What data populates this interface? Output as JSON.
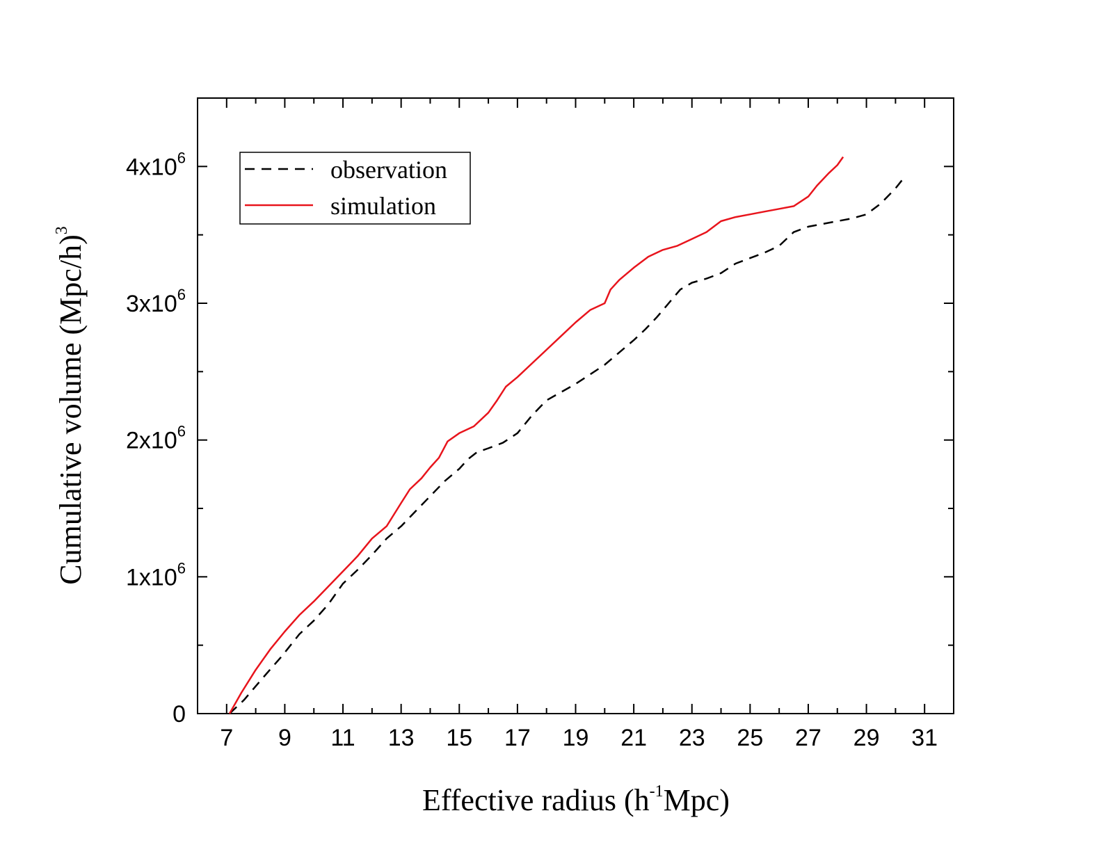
{
  "chart_data": {
    "type": "line",
    "xlabel": {
      "main": "Effective radius (h",
      "sup": "-1",
      "tail": "Mpc)"
    },
    "ylabel": {
      "main": "Cumulative volume (Mpc/h)",
      "sup": "3"
    },
    "xlim": [
      6,
      32
    ],
    "ylim": [
      0,
      4500000
    ],
    "x_ticks": [
      7,
      9,
      11,
      13,
      15,
      17,
      19,
      21,
      23,
      25,
      27,
      29,
      31
    ],
    "x_tick_labels": [
      "7",
      "9",
      "11",
      "13",
      "15",
      "17",
      "19",
      "21",
      "23",
      "25",
      "27",
      "29",
      "31"
    ],
    "y_ticks": [
      0,
      1000000,
      2000000,
      3000000,
      4000000
    ],
    "y_tick_labels": [
      {
        "base": "0",
        "exp": ""
      },
      {
        "base": "1x10",
        "exp": "6"
      },
      {
        "base": "2x10",
        "exp": "6"
      },
      {
        "base": "3x10",
        "exp": "6"
      },
      {
        "base": "4x10",
        "exp": "6"
      }
    ],
    "legend": {
      "position": "top-left"
    },
    "series": [
      {
        "name": "observation",
        "color": "#000000",
        "style": "dashed",
        "x": [
          7.1,
          7.6,
          8.2,
          8.9,
          9.5,
          10.0,
          10.5,
          11.0,
          11.5,
          12.0,
          12.5,
          13.0,
          13.5,
          14.0,
          14.5,
          15.0,
          15.3,
          15.6,
          16.0,
          16.5,
          17.0,
          17.5,
          18.0,
          18.5,
          19.0,
          19.5,
          20.0,
          20.5,
          21.0,
          21.4,
          21.8,
          22.2,
          22.6,
          23.0,
          23.5,
          24.0,
          24.5,
          25.0,
          25.5,
          26.0,
          26.5,
          27.0,
          27.5,
          28.0,
          28.5,
          29.0,
          29.5,
          30.0,
          30.3
        ],
        "y": [
          0,
          100000,
          250000,
          420000,
          580000,
          680000,
          800000,
          950000,
          1050000,
          1160000,
          1280000,
          1370000,
          1480000,
          1590000,
          1700000,
          1790000,
          1860000,
          1910000,
          1940000,
          1980000,
          2050000,
          2180000,
          2290000,
          2350000,
          2410000,
          2480000,
          2550000,
          2640000,
          2730000,
          2810000,
          2900000,
          3000000,
          3100000,
          3150000,
          3180000,
          3220000,
          3290000,
          3330000,
          3370000,
          3420000,
          3520000,
          3560000,
          3580000,
          3600000,
          3620000,
          3650000,
          3730000,
          3840000,
          3920000
        ]
      },
      {
        "name": "simulation",
        "color": "#e8141c",
        "style": "solid",
        "x": [
          7.1,
          7.5,
          8.0,
          8.5,
          9.0,
          9.5,
          10.0,
          10.5,
          11.0,
          11.5,
          12.0,
          12.5,
          13.0,
          13.3,
          13.7,
          14.0,
          14.3,
          14.6,
          15.0,
          15.5,
          16.0,
          16.3,
          16.6,
          17.0,
          17.5,
          18.0,
          18.5,
          19.0,
          19.5,
          20.0,
          20.2,
          20.5,
          21.0,
          21.5,
          22.0,
          22.5,
          23.0,
          23.5,
          24.0,
          24.5,
          25.0,
          25.5,
          26.0,
          26.5,
          27.0,
          27.3,
          27.7,
          28.0,
          28.2
        ],
        "y": [
          0,
          150000,
          320000,
          470000,
          600000,
          720000,
          820000,
          930000,
          1040000,
          1150000,
          1280000,
          1370000,
          1540000,
          1640000,
          1720000,
          1800000,
          1870000,
          1990000,
          2050000,
          2100000,
          2200000,
          2290000,
          2390000,
          2460000,
          2560000,
          2660000,
          2760000,
          2860000,
          2950000,
          3000000,
          3100000,
          3170000,
          3260000,
          3340000,
          3390000,
          3420000,
          3470000,
          3520000,
          3600000,
          3630000,
          3650000,
          3670000,
          3690000,
          3710000,
          3780000,
          3860000,
          3950000,
          4010000,
          4070000
        ]
      }
    ]
  }
}
